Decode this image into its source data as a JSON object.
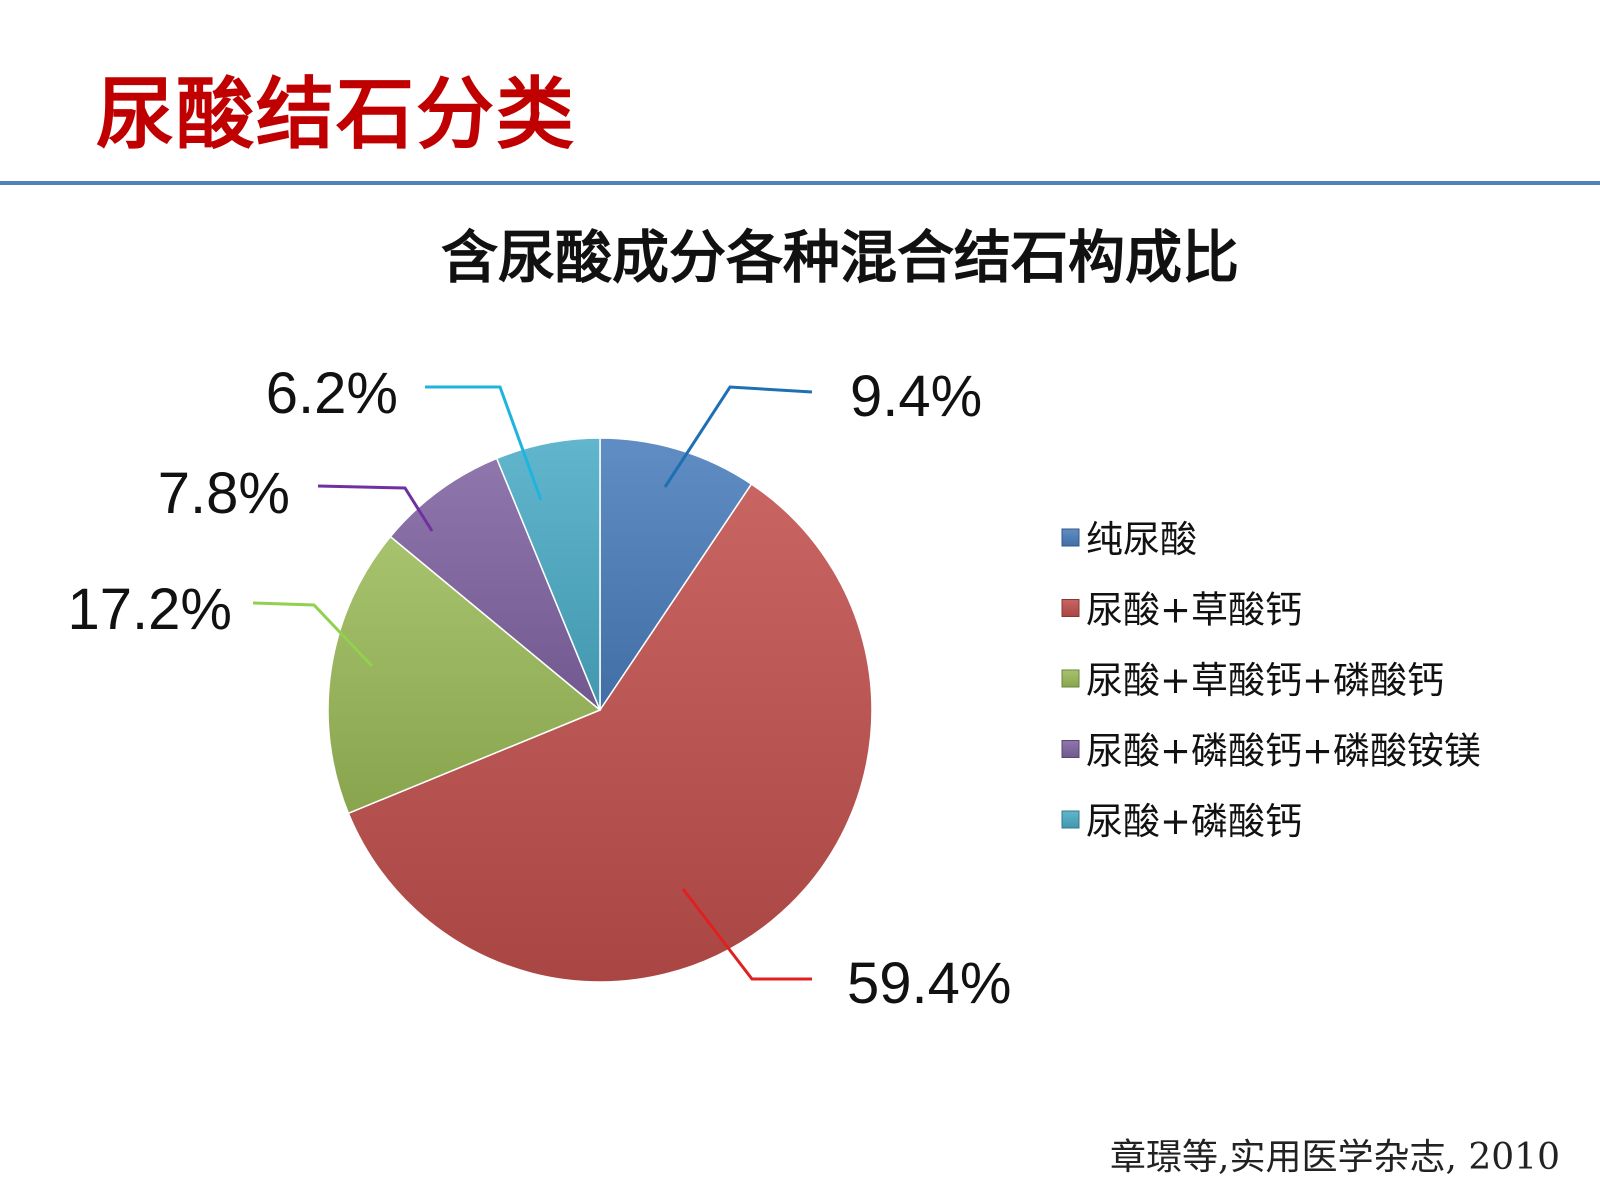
{
  "slide": {
    "title": "尿酸结石分类",
    "citation": "章璟等,实用医学杂志, 2010"
  },
  "chart_data": {
    "type": "pie",
    "title": "含尿酸成分各种混合结石构成比",
    "legend_position": "right",
    "slices": [
      {
        "name": "纯尿酸",
        "value": 9.4,
        "label": "9.4%",
        "color": "#4a7ebb"
      },
      {
        "name": "尿酸+草酸钙",
        "value": 59.4,
        "label": "59.4%",
        "color": "#c0504d"
      },
      {
        "name": "尿酸+草酸钙+磷酸钙",
        "value": 17.2,
        "label": "17.2%",
        "color": "#9bbb59"
      },
      {
        "name": "尿酸+磷酸钙+磷酸铵镁",
        "value": 7.8,
        "label": "7.8%",
        "color": "#8064a2"
      },
      {
        "name": "尿酸+磷酸钙",
        "value": 6.2,
        "label": "6.2%",
        "color": "#4bacc6"
      }
    ],
    "leader_colors": [
      "#1f6fb5",
      "#e02020",
      "#92d050",
      "#7030a0",
      "#1fb4e0"
    ]
  }
}
